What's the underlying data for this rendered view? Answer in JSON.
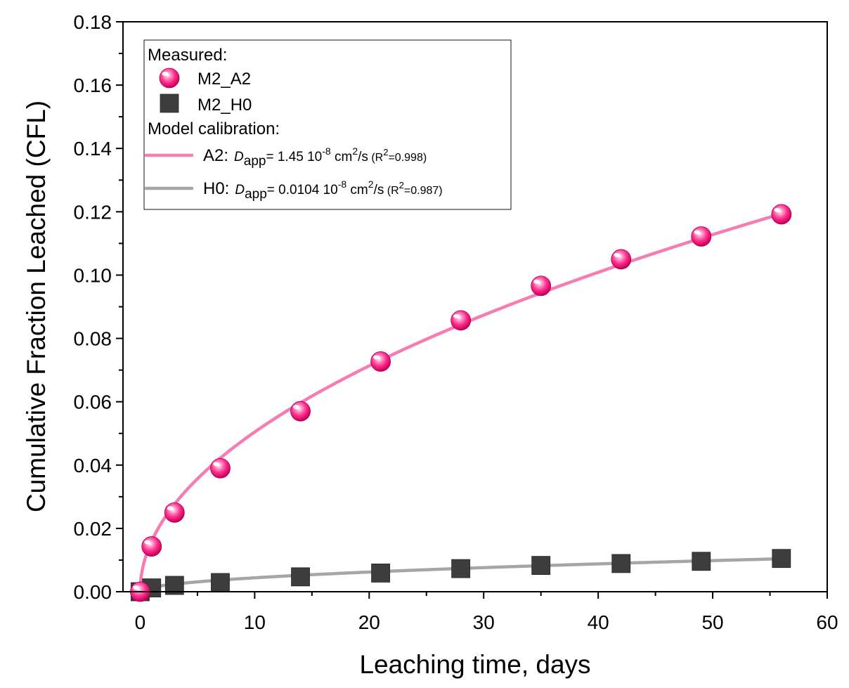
{
  "chart_data": {
    "type": "scatter",
    "xlabel": "Leaching time, days",
    "ylabel": "Cumulative Fraction Leached (CFL)",
    "xlim": [
      -1.5,
      60
    ],
    "ylim": [
      0,
      0.18
    ],
    "xticks": [
      "0",
      "10",
      "20",
      "30",
      "40",
      "50",
      "60"
    ],
    "yticks": [
      "0.00",
      "0.02",
      "0.04",
      "0.06",
      "0.08",
      "0.10",
      "0.12",
      "0.14",
      "0.16",
      "0.18"
    ],
    "grid": false,
    "legend_position": "top-left",
    "colors": {
      "a2": "#ff2d8c",
      "a2_model": "#f57db3",
      "h0": "#3d3d3d",
      "h0_model": "#a6a6a6"
    },
    "series": [
      {
        "name": "M2_A2",
        "kind": "measured",
        "marker": "sphere",
        "x": [
          0,
          1,
          3,
          7,
          14,
          21,
          28,
          35,
          42,
          49,
          56
        ],
        "y": [
          0.0,
          0.0143,
          0.025,
          0.039,
          0.057,
          0.0727,
          0.0857,
          0.0966,
          0.105,
          0.1122,
          0.1192
        ]
      },
      {
        "name": "M2_H0",
        "kind": "measured",
        "marker": "square",
        "x": [
          0,
          1,
          3,
          7,
          14,
          21,
          28,
          35,
          42,
          49,
          56
        ],
        "y": [
          0.0,
          0.0012,
          0.002,
          0.0029,
          0.0047,
          0.0059,
          0.0073,
          0.0083,
          0.0089,
          0.0096,
          0.0105
        ]
      },
      {
        "name": "A2 model",
        "kind": "model",
        "coefficient": 0.01595,
        "x_start": 0,
        "x_end": 56
      },
      {
        "name": "H0 model",
        "kind": "model",
        "coefficient": 0.00139,
        "x_start": 0,
        "x_end": 56
      }
    ]
  },
  "legend": {
    "measured_header": "Measured:",
    "m2_a2": "M2_A2",
    "m2_h0": "M2_H0",
    "model_header": "Model calibration:",
    "a2": {
      "prefix": "A2:",
      "d": "D",
      "sub": "app",
      "value": "= 1.45 10",
      "exp": "-8",
      "unit": " cm",
      "unit_exp": "2",
      "unit_tail": "/s",
      "r2_open": " (R",
      "r2_exp": "2",
      "r2_val": "=0.998)"
    },
    "h0": {
      "prefix": "H0:",
      "d": "D",
      "sub": "app",
      "value": "= 0.0104 10",
      "exp": "-8",
      "unit": " cm",
      "unit_exp": "2",
      "unit_tail": "/s",
      "r2_open": " (R",
      "r2_exp": "2",
      "r2_val": "=0.987)"
    }
  }
}
